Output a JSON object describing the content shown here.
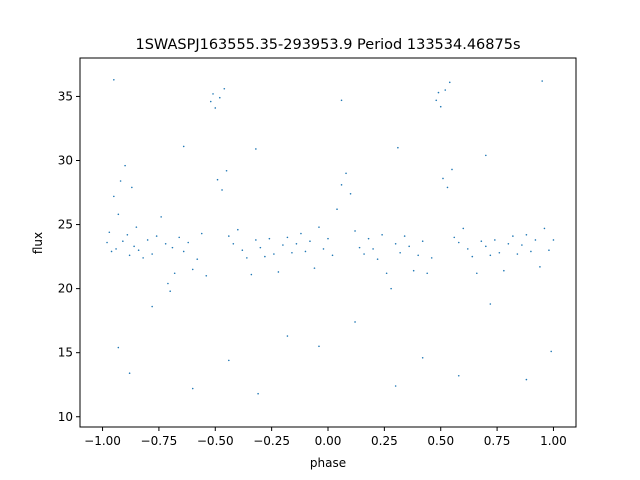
{
  "chart_data": {
    "type": "scatter",
    "title": "1SWASPJ163555.35-293953.9 Period 133534.46875s",
    "xlabel": "phase",
    "ylabel": "flux",
    "xlim": [
      -1.1,
      1.1
    ],
    "ylim": [
      9.2,
      38.0
    ],
    "grid": false,
    "legend": "none",
    "point_color": "#1f77b4",
    "x_ticks": [
      -1.0,
      -0.75,
      -0.5,
      -0.25,
      0.0,
      0.25,
      0.5,
      0.75,
      1.0
    ],
    "x_tick_labels": [
      "−1.00",
      "−0.75",
      "−0.50",
      "−0.25",
      "0.00",
      "0.25",
      "0.50",
      "0.75",
      "1.00"
    ],
    "y_ticks": [
      10,
      15,
      20,
      25,
      30,
      35
    ],
    "y_tick_labels": [
      "10",
      "15",
      "20",
      "25",
      "30",
      "35"
    ],
    "series": [
      {
        "points": [
          [
            -0.98,
            23.6
          ],
          [
            -0.97,
            24.4
          ],
          [
            -0.96,
            22.9
          ],
          [
            -0.95,
            27.2
          ],
          [
            -0.94,
            23.1
          ],
          [
            -0.93,
            25.8
          ],
          [
            -0.92,
            28.4
          ],
          [
            -0.91,
            23.7
          ],
          [
            -0.9,
            29.6
          ],
          [
            -0.89,
            24.2
          ],
          [
            -0.88,
            22.6
          ],
          [
            -0.87,
            27.9
          ],
          [
            -0.86,
            23.3
          ],
          [
            -0.85,
            24.8
          ],
          [
            -0.84,
            23.0
          ],
          [
            -0.82,
            22.4
          ],
          [
            -0.8,
            23.8
          ],
          [
            -0.78,
            22.7
          ],
          [
            -0.76,
            24.1
          ],
          [
            -0.74,
            25.6
          ],
          [
            -0.72,
            23.5
          ],
          [
            -0.71,
            20.4
          ],
          [
            -0.7,
            19.8
          ],
          [
            -0.69,
            23.2
          ],
          [
            -0.68,
            21.2
          ],
          [
            -0.66,
            24.0
          ],
          [
            -0.64,
            22.9
          ],
          [
            -0.62,
            23.6
          ],
          [
            -0.6,
            21.5
          ],
          [
            -0.58,
            22.3
          ],
          [
            -0.56,
            24.3
          ],
          [
            -0.54,
            21.0
          ],
          [
            -0.52,
            34.6
          ],
          [
            -0.51,
            35.2
          ],
          [
            -0.5,
            34.1
          ],
          [
            -0.49,
            28.5
          ],
          [
            -0.48,
            34.9
          ],
          [
            -0.47,
            27.7
          ],
          [
            -0.46,
            35.6
          ],
          [
            -0.45,
            29.2
          ],
          [
            -0.44,
            24.1
          ],
          [
            -0.42,
            23.5
          ],
          [
            -0.4,
            24.6
          ],
          [
            -0.38,
            23.0
          ],
          [
            -0.36,
            22.4
          ],
          [
            -0.34,
            21.1
          ],
          [
            -0.32,
            23.8
          ],
          [
            -0.3,
            23.2
          ],
          [
            -0.28,
            22.5
          ],
          [
            -0.26,
            23.9
          ],
          [
            -0.24,
            22.7
          ],
          [
            -0.22,
            21.3
          ],
          [
            -0.2,
            23.4
          ],
          [
            -0.18,
            24.0
          ],
          [
            -0.16,
            22.8
          ],
          [
            -0.14,
            23.5
          ],
          [
            -0.12,
            24.3
          ],
          [
            -0.1,
            22.9
          ],
          [
            -0.08,
            23.7
          ],
          [
            -0.06,
            21.6
          ],
          [
            -0.04,
            24.8
          ],
          [
            -0.02,
            23.1
          ],
          [
            0.0,
            23.9
          ],
          [
            0.02,
            22.6
          ],
          [
            0.04,
            26.2
          ],
          [
            0.06,
            28.1
          ],
          [
            0.08,
            29.0
          ],
          [
            0.1,
            27.4
          ],
          [
            0.12,
            24.5
          ],
          [
            0.14,
            23.2
          ],
          [
            0.16,
            22.7
          ],
          [
            0.18,
            23.9
          ],
          [
            0.2,
            23.1
          ],
          [
            0.22,
            22.3
          ],
          [
            0.24,
            24.2
          ],
          [
            0.26,
            21.2
          ],
          [
            0.28,
            20.0
          ],
          [
            0.3,
            23.5
          ],
          [
            0.32,
            22.8
          ],
          [
            0.34,
            24.1
          ],
          [
            0.36,
            23.3
          ],
          [
            0.38,
            21.4
          ],
          [
            0.4,
            22.6
          ],
          [
            0.42,
            23.7
          ],
          [
            0.44,
            21.2
          ],
          [
            0.46,
            22.4
          ],
          [
            0.48,
            34.7
          ],
          [
            0.49,
            35.3
          ],
          [
            0.5,
            34.2
          ],
          [
            0.51,
            28.6
          ],
          [
            0.52,
            35.5
          ],
          [
            0.53,
            27.9
          ],
          [
            0.54,
            36.1
          ],
          [
            0.55,
            29.3
          ],
          [
            0.56,
            24.0
          ],
          [
            0.58,
            23.6
          ],
          [
            0.6,
            24.7
          ],
          [
            0.62,
            23.1
          ],
          [
            0.64,
            22.5
          ],
          [
            0.66,
            21.2
          ],
          [
            0.68,
            23.7
          ],
          [
            0.7,
            23.3
          ],
          [
            0.72,
            22.6
          ],
          [
            0.74,
            23.8
          ],
          [
            0.76,
            22.8
          ],
          [
            0.78,
            21.4
          ],
          [
            0.8,
            23.5
          ],
          [
            0.82,
            24.1
          ],
          [
            0.84,
            22.7
          ],
          [
            0.86,
            23.4
          ],
          [
            0.88,
            24.2
          ],
          [
            0.9,
            22.9
          ],
          [
            0.92,
            23.8
          ],
          [
            0.94,
            21.7
          ],
          [
            0.96,
            24.7
          ],
          [
            0.98,
            23.0
          ],
          [
            1.0,
            23.8
          ],
          [
            -0.93,
            15.4
          ],
          [
            -0.88,
            13.4
          ],
          [
            -0.78,
            18.6
          ],
          [
            -0.6,
            12.2
          ],
          [
            -0.44,
            14.4
          ],
          [
            -0.31,
            11.8
          ],
          [
            -0.18,
            16.3
          ],
          [
            -0.04,
            15.5
          ],
          [
            0.12,
            17.4
          ],
          [
            0.3,
            12.4
          ],
          [
            0.42,
            14.6
          ],
          [
            0.58,
            13.2
          ],
          [
            0.72,
            18.8
          ],
          [
            0.88,
            12.9
          ],
          [
            0.99,
            15.1
          ],
          [
            -0.95,
            36.3
          ],
          [
            -0.64,
            31.1
          ],
          [
            -0.32,
            30.9
          ],
          [
            0.06,
            34.7
          ],
          [
            0.31,
            31.0
          ],
          [
            0.7,
            30.4
          ],
          [
            0.95,
            36.2
          ]
        ]
      }
    ]
  }
}
